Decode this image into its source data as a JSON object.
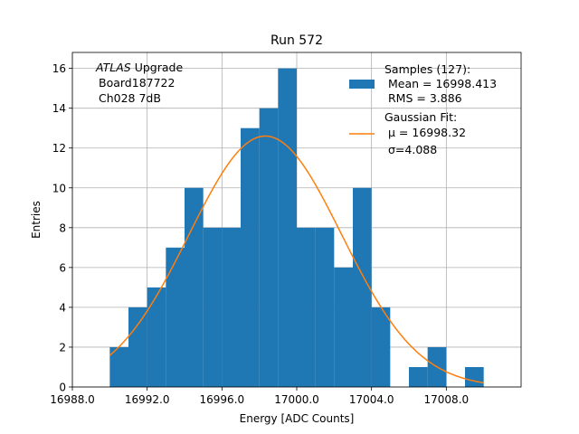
{
  "chart_data": {
    "type": "bar",
    "title": "Run 572",
    "xlabel": "Energy [ADC Counts]",
    "ylabel": "Entries",
    "xlim": [
      16988.0,
      17012.0
    ],
    "ylim": [
      0,
      16.8
    ],
    "grid": true,
    "x_ticks": [
      16988.0,
      16992.0,
      16996.0,
      17000.0,
      17004.0,
      17008.0
    ],
    "x_tick_labels": [
      "16988.0",
      "16992.0",
      "16996.0",
      "17000.0",
      "17004.0",
      "17008.0"
    ],
    "y_ticks": [
      0,
      2,
      4,
      6,
      8,
      10,
      12,
      14,
      16
    ],
    "y_tick_labels": [
      "0",
      "2",
      "4",
      "6",
      "8",
      "10",
      "12",
      "14",
      "16"
    ],
    "bin_width": 1,
    "bin_starts": [
      16990,
      16991,
      16992,
      16993,
      16994,
      16995,
      16996,
      16997,
      16998,
      16999,
      17000,
      17001,
      17002,
      17003,
      17004,
      17005,
      17006,
      17007,
      17008,
      17009
    ],
    "counts": [
      2,
      4,
      5,
      7,
      10,
      8,
      8,
      13,
      14,
      16,
      8,
      8,
      6,
      10,
      4,
      0,
      1,
      2,
      0,
      1
    ],
    "bar_color": "#1f77b4",
    "fit": {
      "mu": 16998.32,
      "sigma": 4.088,
      "amplitude": 12.6,
      "x_range": [
        16990.0,
        17010.0
      ],
      "color": "#ff7f0e"
    },
    "info_text": {
      "atlas": "ATLAS",
      "upgrade": " Upgrade",
      "board": "Board187722",
      "channel": "Ch028 7dB"
    },
    "legend": {
      "position": "upper-right",
      "samples_title": "Samples (127):",
      "samples_mean": "Mean = 16998.413",
      "samples_rms": "RMS = 3.886",
      "fit_title": "Gaussian Fit:",
      "fit_mu": "μ = 16998.32",
      "fit_sigma": "σ=4.088"
    }
  }
}
